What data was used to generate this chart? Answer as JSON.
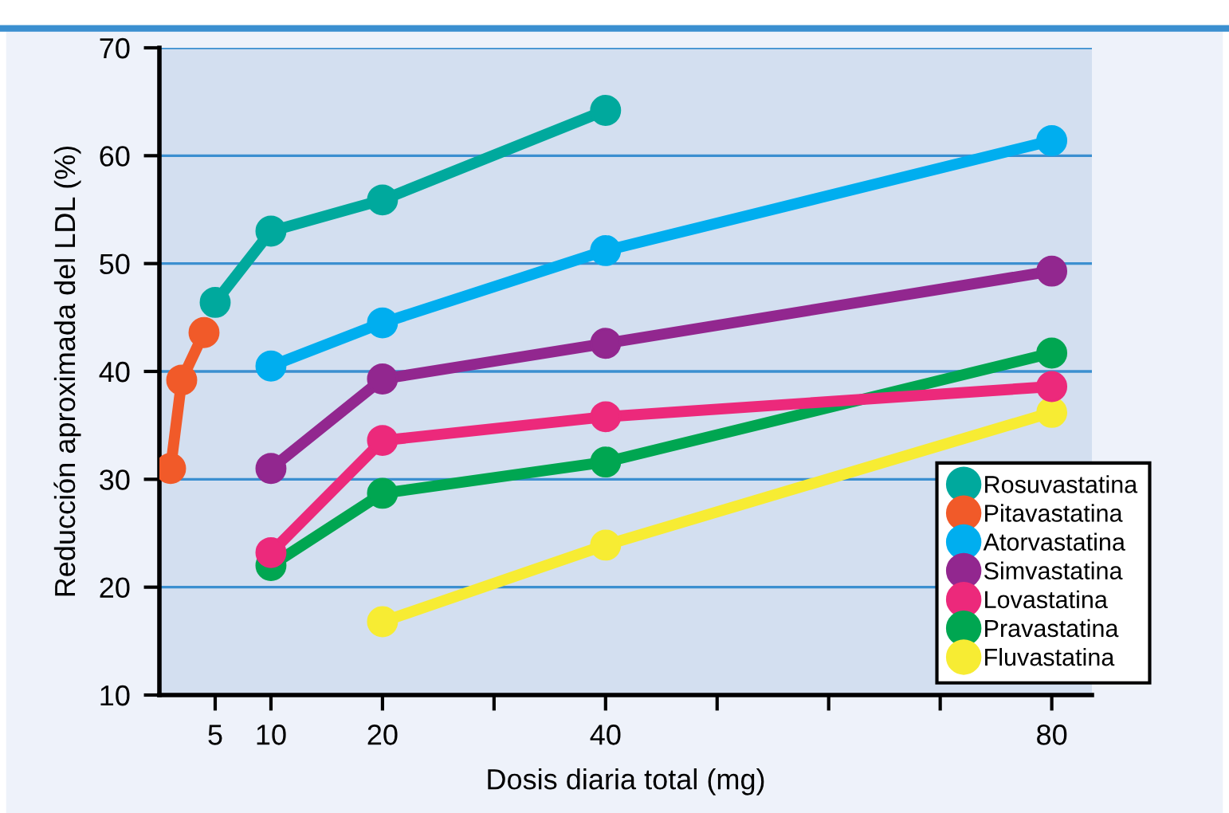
{
  "chart_data": {
    "type": "line",
    "xlabel": "Dosis diaria total (mg)",
    "ylabel": "Reducción aproximada del LDL (%)",
    "xlim": [
      0,
      83.6
    ],
    "xticks": [
      5,
      10,
      20,
      {
        "value": 30,
        "label": null
      },
      40,
      {
        "value": 50,
        "label": null
      },
      {
        "value": 60,
        "label": null
      },
      {
        "value": 70,
        "label": null
      },
      80
    ],
    "ylim": [
      10,
      70
    ],
    "yticks": [
      10,
      20,
      30,
      40,
      50,
      60,
      70
    ],
    "grid": "y",
    "legend": "bottom right",
    "marker": "circle",
    "line_style": "solid",
    "series": [
      {
        "name": "Rosuvastatina",
        "color": "#00a99d",
        "x": [
          5,
          10,
          20,
          40
        ],
        "values": [
          46.4,
          53.0,
          55.9,
          64.2
        ]
      },
      {
        "name": "Pitavastatina",
        "color": "#f15a29",
        "x": [
          1,
          2,
          4
        ],
        "values": [
          31.0,
          39.2,
          43.6
        ]
      },
      {
        "name": "Atorvastatina",
        "color": "#00aeef",
        "x": [
          10,
          20,
          40,
          80
        ],
        "values": [
          40.5,
          44.5,
          51.2,
          61.4
        ]
      },
      {
        "name": "Simvastatina",
        "color": "#92278f",
        "x": [
          10,
          20,
          40,
          80
        ],
        "values": [
          31.0,
          39.3,
          42.6,
          49.3
        ]
      },
      {
        "name": "Lovastatina",
        "color": "#ec297b",
        "x": [
          10,
          20,
          40,
          80
        ],
        "values": [
          23.2,
          33.6,
          35.8,
          38.6
        ]
      },
      {
        "name": "Pravastatina",
        "color": "#00a651",
        "x": [
          10,
          20,
          40,
          80
        ],
        "values": [
          22.0,
          28.7,
          31.6,
          41.7
        ]
      },
      {
        "name": "Fluvastatina",
        "color": "#f7ec33",
        "x": [
          20,
          40,
          80
        ],
        "values": [
          16.8,
          23.9,
          36.2
        ]
      }
    ]
  }
}
